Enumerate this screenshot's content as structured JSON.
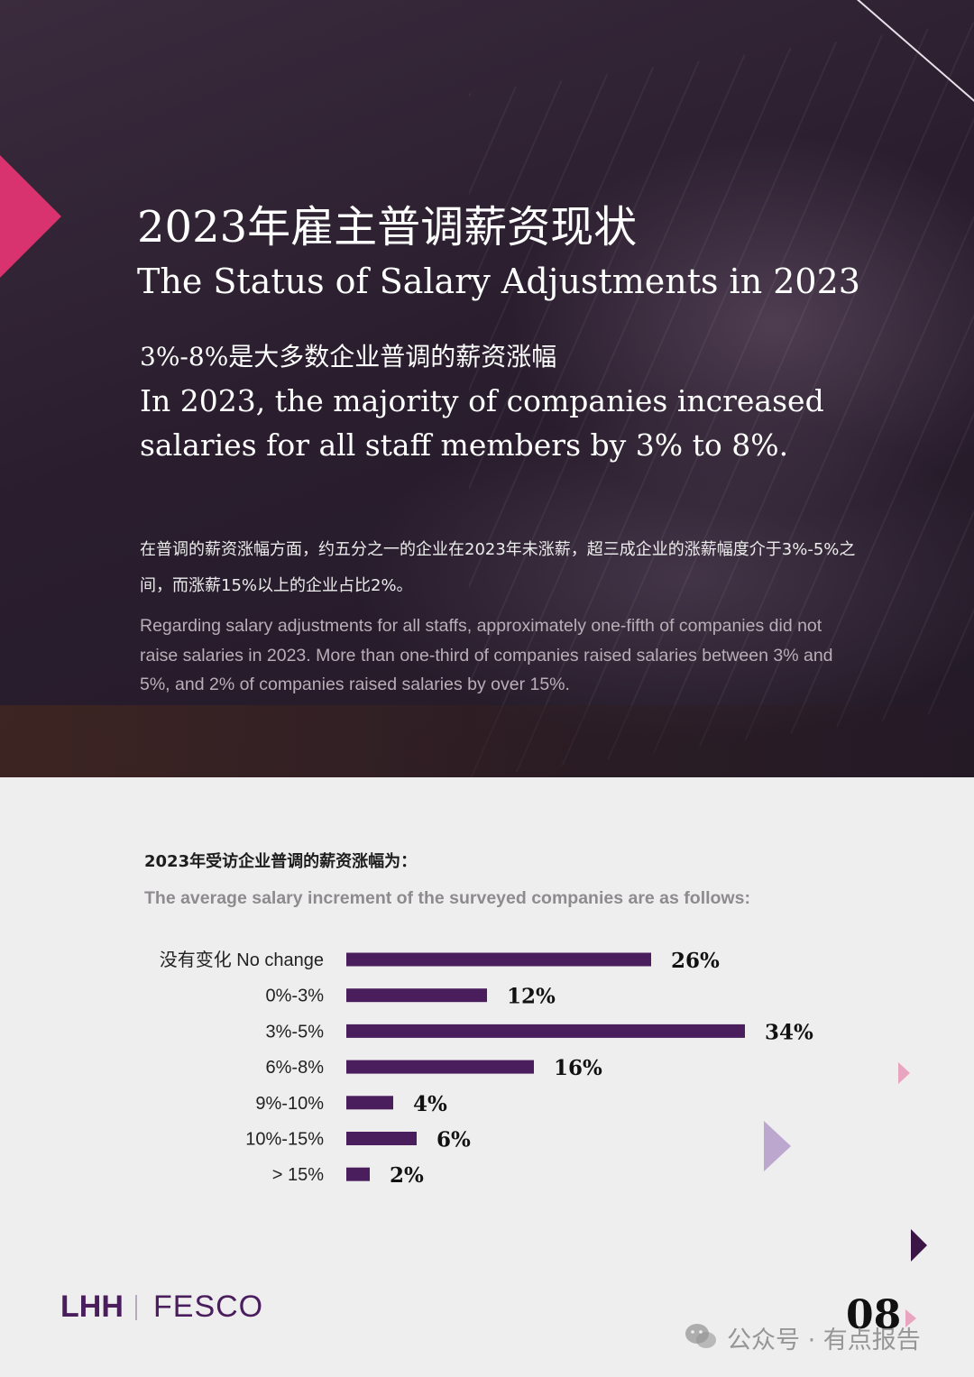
{
  "hero": {
    "title_cn": "2023年雇主普调薪资现状",
    "title_en": "The Status of Salary Adjustments in 2023",
    "subtitle_cn": "3%-8%是大多数企业普调的薪资涨幅",
    "subtitle_en": "In 2023, the majority of companies increased salaries for all staff members by 3% to 8%.",
    "para_cn": "在普调的薪资涨幅方面，约五分之一的企业在2023年未涨薪，超三成企业的涨薪幅度介于3%-5%之间，而涨薪15%以上的企业占比2%。",
    "para_en": "Regarding salary adjustments for all staffs, approximately one-fifth of companies did not raise salaries in 2023. More than one-third of companies raised salaries between 3% and 5%, and 2% of companies raised salaries by over 15%."
  },
  "chart_heading": {
    "cn": "2023年受访企业普调的薪资涨幅为：",
    "en": "The average salary increment of the surveyed companies are as follows:"
  },
  "chart_data": {
    "type": "bar",
    "orientation": "horizontal",
    "categories": [
      "没有变化 No change",
      "0%-3%",
      "3%-5%",
      "6%-8%",
      "9%-10%",
      "10%-15%",
      "> 15%"
    ],
    "values": [
      26,
      12,
      34,
      16,
      4,
      6,
      2
    ],
    "value_labels": [
      "26%",
      "12%",
      "34%",
      "16%",
      "4%",
      "6%",
      "2%"
    ],
    "unit": "%",
    "title": "",
    "xlabel": "",
    "ylabel": "",
    "bar_color": "#4a1d5d",
    "grid": false,
    "legend": false
  },
  "footer": {
    "logo_left": "LHH",
    "logo_right": "FESCO",
    "page_number": "08",
    "watermark": "公众号 · 有点报告"
  },
  "colors": {
    "accent_pink": "#d8336f",
    "brand_purple": "#4a1d5d",
    "hero_bg": "#2a1e2e"
  }
}
